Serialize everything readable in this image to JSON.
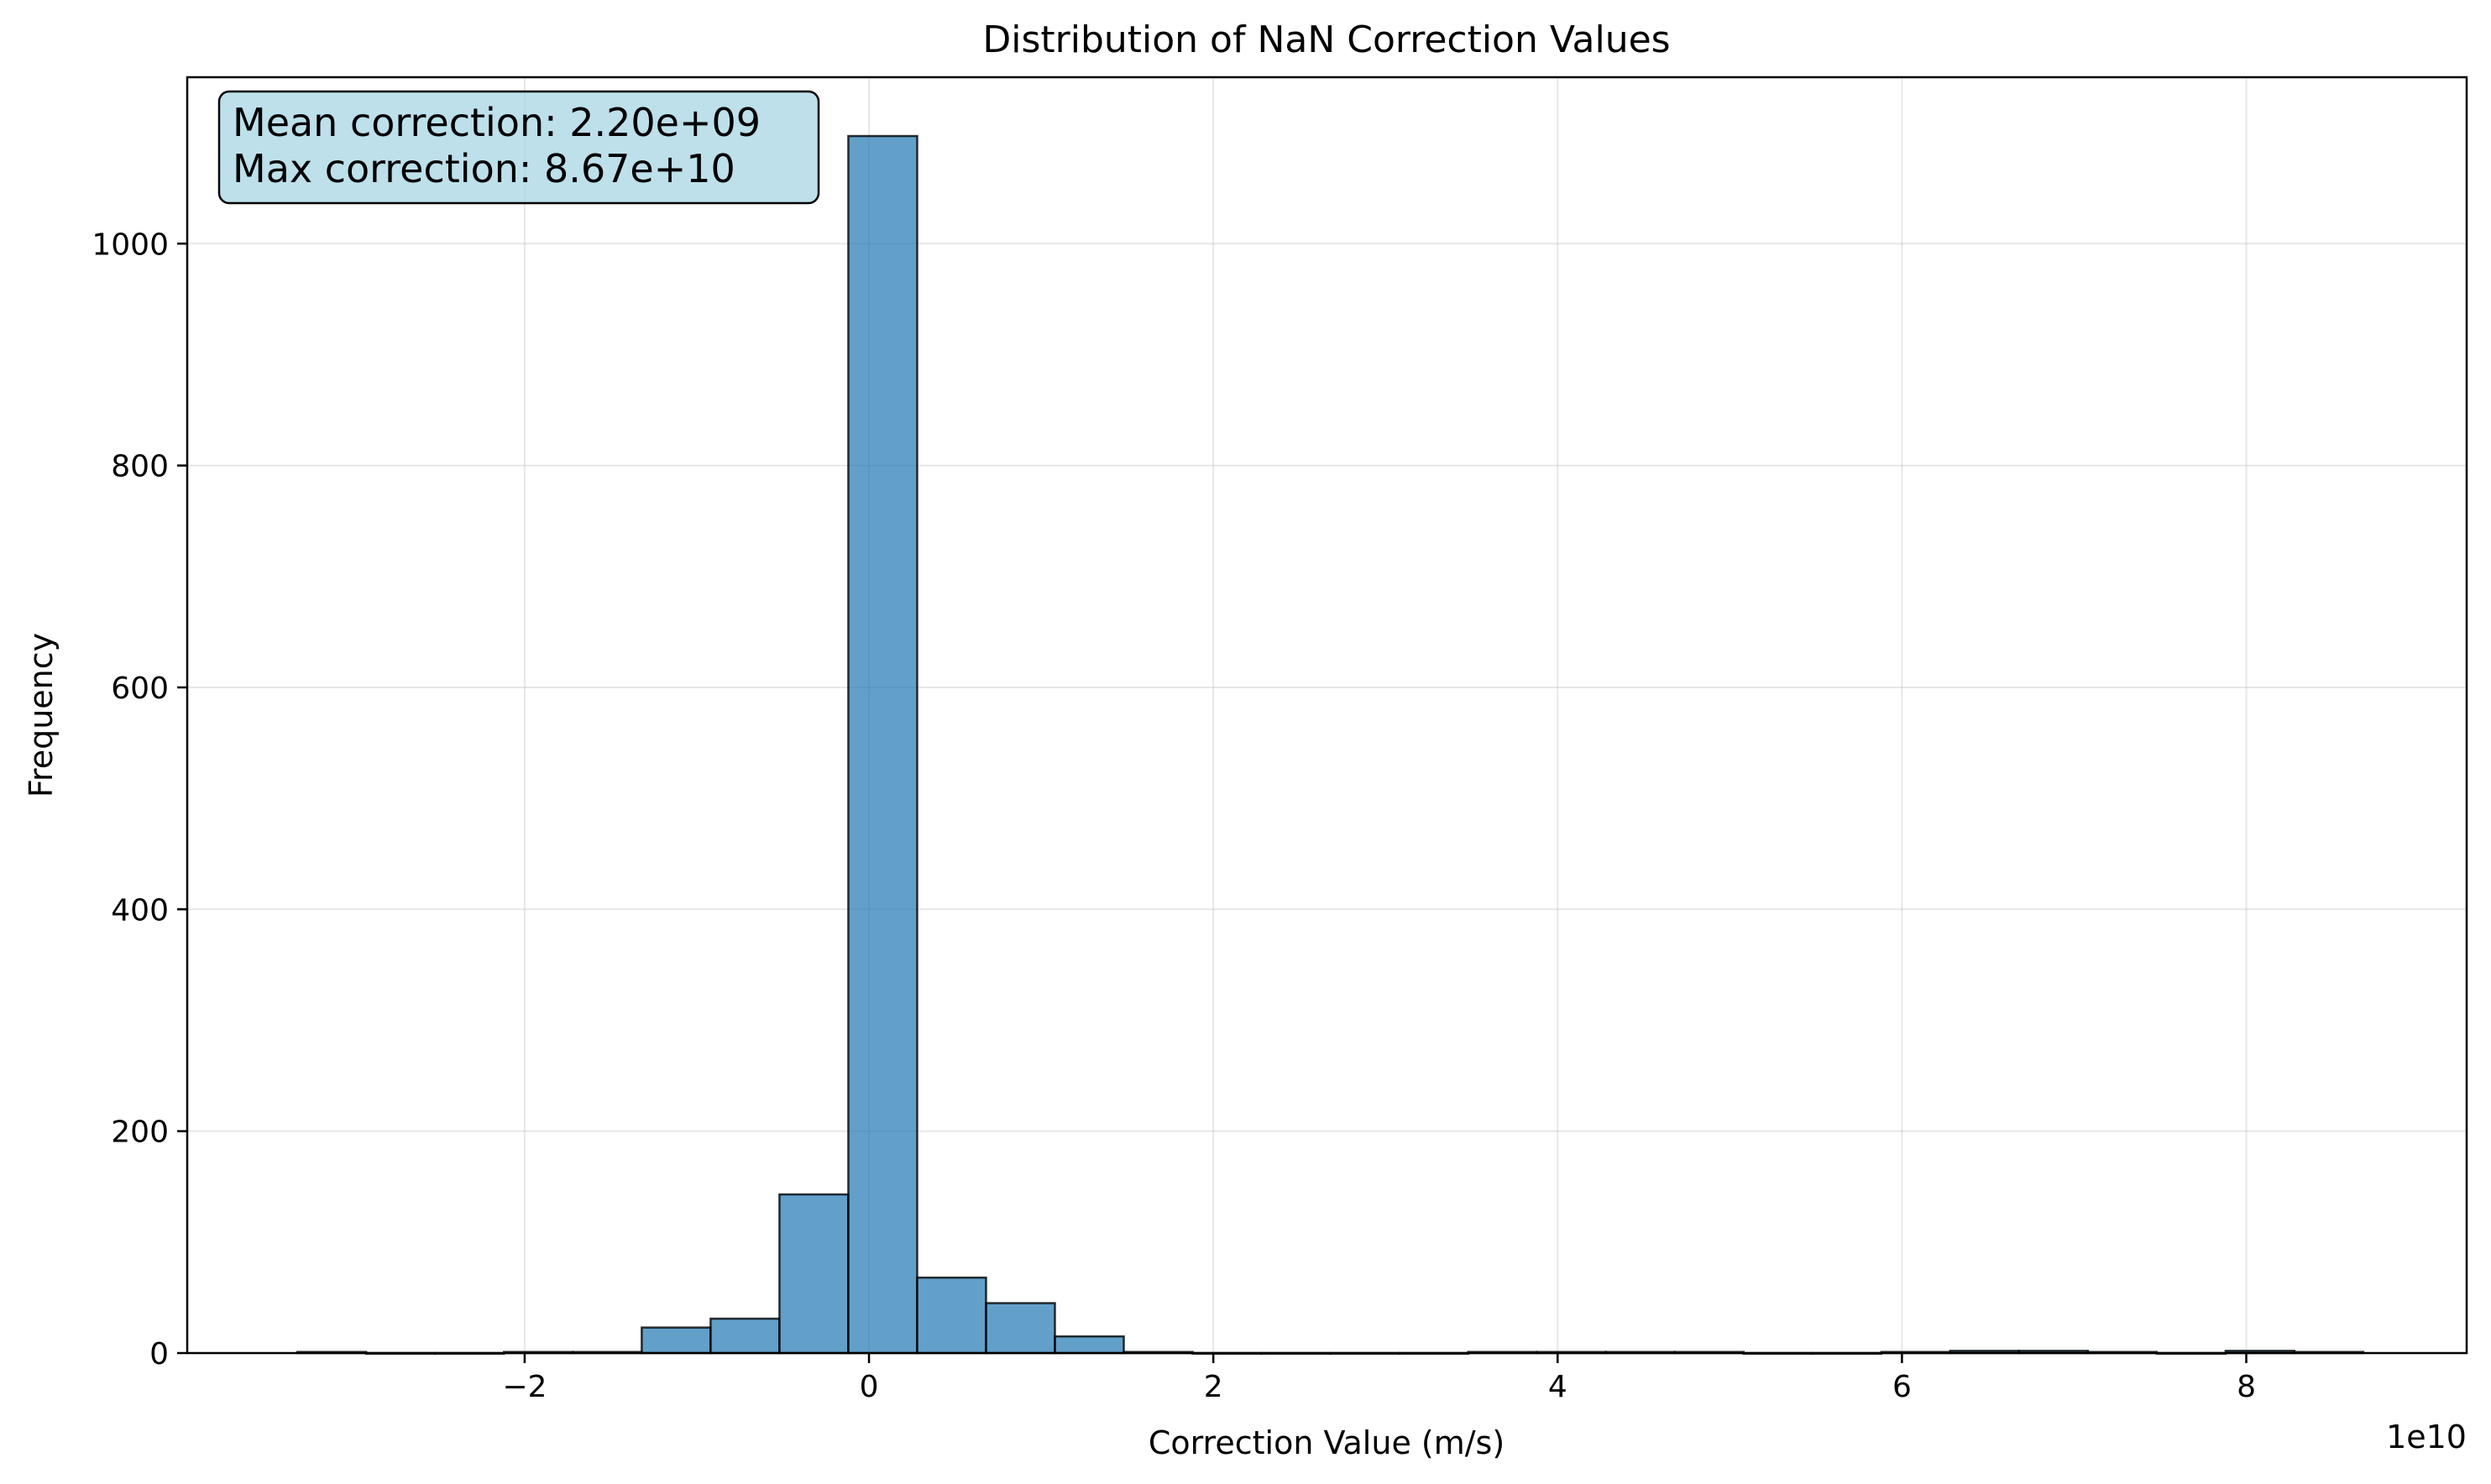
{
  "chart_data": {
    "type": "bar",
    "title": "Distribution of NaN Correction Values",
    "xlabel": "Correction Value (m/s)",
    "ylabel": "Frequency",
    "x_offset_label": "1e10",
    "x_scale": 10000000000.0,
    "xlim": [
      -3.96,
      9.28
    ],
    "ylim": [
      0,
      1150
    ],
    "x_ticks": [
      -2,
      0,
      2,
      4,
      6,
      8
    ],
    "x_tick_labels": [
      "−2",
      "0",
      "2",
      "4",
      "6",
      "8"
    ],
    "y_ticks": [
      0,
      200,
      400,
      600,
      800,
      1000
    ],
    "y_tick_labels": [
      "0",
      "200",
      "400",
      "600",
      "800",
      "1000"
    ],
    "grid": true,
    "bar_color": "#1f77b4",
    "bar_edge_color": "#000000",
    "annotation": {
      "lines": [
        "Mean correction: 2.20e+09",
        "Max correction: 8.67e+10"
      ],
      "background": "#add8e6"
    },
    "bin_start": -3.32,
    "bin_width": 0.4,
    "bins": [
      {
        "x0": -3.32,
        "x1": -2.92,
        "count": 1
      },
      {
        "x0": -2.92,
        "x1": -2.52,
        "count": 0
      },
      {
        "x0": -2.52,
        "x1": -2.12,
        "count": 0
      },
      {
        "x0": -2.12,
        "x1": -1.72,
        "count": 1
      },
      {
        "x0": -1.72,
        "x1": -1.32,
        "count": 1
      },
      {
        "x0": -1.32,
        "x1": -0.92,
        "count": 23
      },
      {
        "x0": -0.92,
        "x1": -0.52,
        "count": 31
      },
      {
        "x0": -0.52,
        "x1": -0.12,
        "count": 143
      },
      {
        "x0": -0.12,
        "x1": 0.28,
        "count": 1097
      },
      {
        "x0": 0.28,
        "x1": 0.68,
        "count": 68
      },
      {
        "x0": 0.68,
        "x1": 1.08,
        "count": 45
      },
      {
        "x0": 1.08,
        "x1": 1.48,
        "count": 15
      },
      {
        "x0": 1.48,
        "x1": 1.88,
        "count": 1
      },
      {
        "x0": 1.88,
        "x1": 2.28,
        "count": 0
      },
      {
        "x0": 2.28,
        "x1": 2.68,
        "count": 0
      },
      {
        "x0": 2.68,
        "x1": 3.08,
        "count": 0
      },
      {
        "x0": 3.08,
        "x1": 3.48,
        "count": 0
      },
      {
        "x0": 3.48,
        "x1": 3.88,
        "count": 1
      },
      {
        "x0": 3.88,
        "x1": 4.28,
        "count": 1
      },
      {
        "x0": 4.28,
        "x1": 4.68,
        "count": 1
      },
      {
        "x0": 4.68,
        "x1": 5.08,
        "count": 1
      },
      {
        "x0": 5.08,
        "x1": 5.48,
        "count": 0
      },
      {
        "x0": 5.48,
        "x1": 5.88,
        "count": 0
      },
      {
        "x0": 5.88,
        "x1": 6.28,
        "count": 1
      },
      {
        "x0": 6.28,
        "x1": 6.68,
        "count": 2
      },
      {
        "x0": 6.68,
        "x1": 7.08,
        "count": 2
      },
      {
        "x0": 7.08,
        "x1": 7.48,
        "count": 1
      },
      {
        "x0": 7.48,
        "x1": 7.88,
        "count": 0
      },
      {
        "x0": 7.88,
        "x1": 8.28,
        "count": 2
      },
      {
        "x0": 8.28,
        "x1": 8.68,
        "count": 1
      }
    ]
  }
}
